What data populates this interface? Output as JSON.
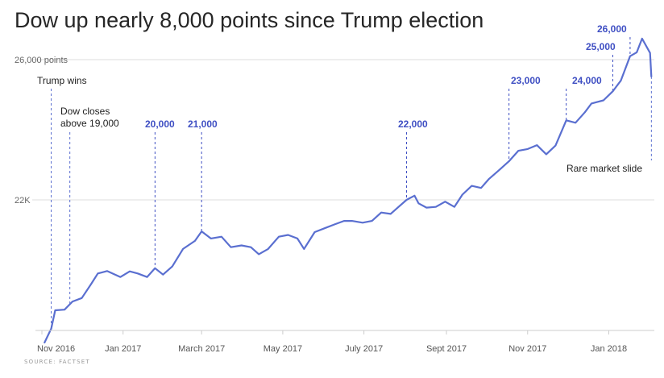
{
  "title": "Dow up nearly 8,000 points since Trump election",
  "source": "SOURCE: FACTSET",
  "colors": {
    "line": "#5a6fd0",
    "annotation_blue": "#3f4fc3",
    "grid": "#dddddd"
  },
  "chart_data": {
    "type": "line",
    "title": "Dow up nearly 8,000 points since Trump election",
    "xlabel": "",
    "ylabel": "",
    "ylim": [
      17600,
      26800
    ],
    "grid": true,
    "y_tick_labels": [
      {
        "value": 26000,
        "label": "26,000 points"
      },
      {
        "value": 22000,
        "label": "22K"
      }
    ],
    "x_tick_labels": [
      {
        "date": "2016-11-01",
        "label": "Nov 2016"
      },
      {
        "date": "2017-01-01",
        "label": "Jan 2017"
      },
      {
        "date": "2017-03-01",
        "label": "March 2017"
      },
      {
        "date": "2017-05-01",
        "label": "May 2017"
      },
      {
        "date": "2017-07-01",
        "label": "July 2017"
      },
      {
        "date": "2017-09-01",
        "label": "Sept 2017"
      },
      {
        "date": "2017-11-01",
        "label": "Nov 2017"
      },
      {
        "date": "2018-01-01",
        "label": "Jan 2018"
      }
    ],
    "series": [
      {
        "points": [
          [
            "2016-11-03",
            17930
          ],
          [
            "2016-11-08",
            18330
          ],
          [
            "2016-11-11",
            18850
          ],
          [
            "2016-11-18",
            18870
          ],
          [
            "2016-11-24",
            19100
          ],
          [
            "2016-12-01",
            19200
          ],
          [
            "2016-12-08",
            19600
          ],
          [
            "2016-12-13",
            19900
          ],
          [
            "2016-12-20",
            19970
          ],
          [
            "2016-12-30",
            19800
          ],
          [
            "2017-01-06",
            19960
          ],
          [
            "2017-01-12",
            19900
          ],
          [
            "2017-01-19",
            19800
          ],
          [
            "2017-01-25",
            20050
          ],
          [
            "2017-01-31",
            19870
          ],
          [
            "2017-02-07",
            20100
          ],
          [
            "2017-02-15",
            20600
          ],
          [
            "2017-02-24",
            20830
          ],
          [
            "2017-03-01",
            21100
          ],
          [
            "2017-03-08",
            20900
          ],
          [
            "2017-03-16",
            20950
          ],
          [
            "2017-03-23",
            20650
          ],
          [
            "2017-03-31",
            20700
          ],
          [
            "2017-04-07",
            20650
          ],
          [
            "2017-04-13",
            20450
          ],
          [
            "2017-04-20",
            20600
          ],
          [
            "2017-04-28",
            20950
          ],
          [
            "2017-05-05",
            21000
          ],
          [
            "2017-05-12",
            20900
          ],
          [
            "2017-05-17",
            20600
          ],
          [
            "2017-05-25",
            21080
          ],
          [
            "2017-06-02",
            21200
          ],
          [
            "2017-06-09",
            21300
          ],
          [
            "2017-06-16",
            21400
          ],
          [
            "2017-06-22",
            21400
          ],
          [
            "2017-06-30",
            21350
          ],
          [
            "2017-07-07",
            21400
          ],
          [
            "2017-07-14",
            21640
          ],
          [
            "2017-07-21",
            21600
          ],
          [
            "2017-07-27",
            21800
          ],
          [
            "2017-08-02",
            22000
          ],
          [
            "2017-08-08",
            22120
          ],
          [
            "2017-08-11",
            21900
          ],
          [
            "2017-08-17",
            21780
          ],
          [
            "2017-08-24",
            21800
          ],
          [
            "2017-08-31",
            21950
          ],
          [
            "2017-09-07",
            21800
          ],
          [
            "2017-09-13",
            22150
          ],
          [
            "2017-09-20",
            22400
          ],
          [
            "2017-09-27",
            22340
          ],
          [
            "2017-10-03",
            22600
          ],
          [
            "2017-10-10",
            22830
          ],
          [
            "2017-10-18",
            23100
          ],
          [
            "2017-10-25",
            23400
          ],
          [
            "2017-11-01",
            23450
          ],
          [
            "2017-11-08",
            23560
          ],
          [
            "2017-11-15",
            23300
          ],
          [
            "2017-11-22",
            23550
          ],
          [
            "2017-11-30",
            24270
          ],
          [
            "2017-12-07",
            24200
          ],
          [
            "2017-12-14",
            24500
          ],
          [
            "2017-12-19",
            24750
          ],
          [
            "2017-12-28",
            24840
          ],
          [
            "2018-01-04",
            25100
          ],
          [
            "2018-01-10",
            25400
          ],
          [
            "2018-01-17",
            26100
          ],
          [
            "2018-01-22",
            26210
          ],
          [
            "2018-01-26",
            26600
          ],
          [
            "2018-02-01",
            26190
          ],
          [
            "2018-02-02",
            25520
          ]
        ]
      }
    ],
    "annotations": [
      {
        "date": "2016-11-08",
        "value": 18330,
        "text": [
          "Trump wins"
        ],
        "style": "black"
      },
      {
        "date": "2016-11-22",
        "value": 19030,
        "text": [
          "Dow closes",
          "above 19,000"
        ],
        "style": "black"
      },
      {
        "date": "2017-01-25",
        "value": 20050,
        "text": [
          "20,000"
        ],
        "style": "blue"
      },
      {
        "date": "2017-03-01",
        "value": 21100,
        "text": [
          "21,000"
        ],
        "style": "blue"
      },
      {
        "date": "2017-08-02",
        "value": 22000,
        "text": [
          "22,000"
        ],
        "style": "blue"
      },
      {
        "date": "2017-10-18",
        "value": 23100,
        "text": [
          "23,000"
        ],
        "style": "blue"
      },
      {
        "date": "2017-11-30",
        "value": 24270,
        "text": [
          "24,000"
        ],
        "style": "blue"
      },
      {
        "date": "2018-01-04",
        "value": 25100,
        "text": [
          "25,000"
        ],
        "style": "blue"
      },
      {
        "date": "2018-01-17",
        "value": 26100,
        "text": [
          "26,000"
        ],
        "style": "blue"
      },
      {
        "date": "2018-02-02",
        "value": 25520,
        "text": [
          "Rare market slide"
        ],
        "style": "black"
      }
    ]
  }
}
